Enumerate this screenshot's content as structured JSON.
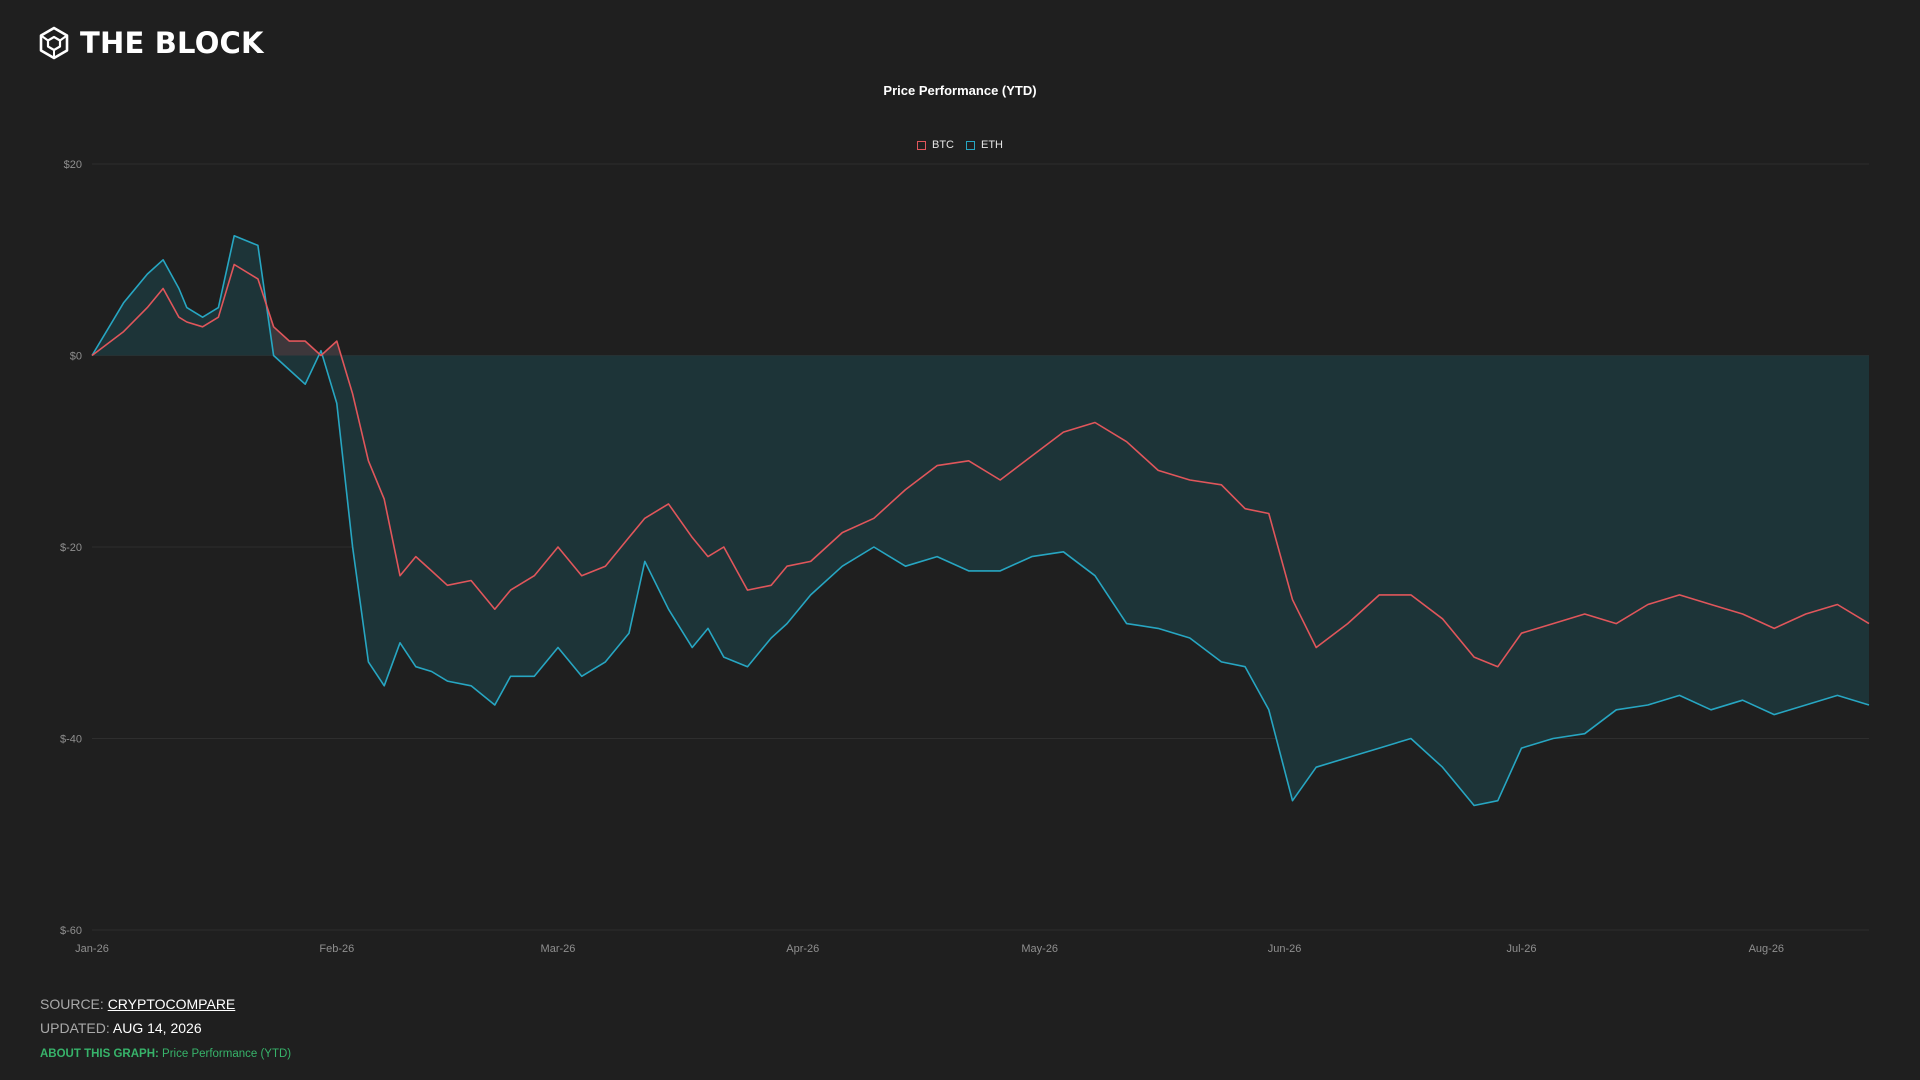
{
  "brand": {
    "name": "THE BLOCK",
    "icon": "cube-logo-icon"
  },
  "footer": {
    "source_label": "SOURCE:",
    "source_value": "CRYPTOCOMPARE",
    "updated_label": "UPDATED:",
    "updated_value": "AUG 14, 2026",
    "about_label": "ABOUT THIS GRAPH:",
    "about_value": "Price Performance (YTD)"
  },
  "colors": {
    "background": "#1f1f1f",
    "btc": "#e0565b",
    "eth": "#27a6c2",
    "btc_fill": "#3d373b",
    "eth_fill": "#1d3438",
    "grid": "#2e2e2e",
    "about": "#37b36a"
  },
  "chart_data": {
    "type": "area",
    "title": "Price Performance (YTD)",
    "legend_position": "top-center",
    "grid": true,
    "ylim": [
      -60,
      20
    ],
    "y_ticks": [
      "$20",
      "$0",
      "$-20",
      "$-40",
      "$-60"
    ],
    "x_ticks": [
      "Jan-26",
      "Feb-26",
      "Mar-26",
      "Apr-26",
      "May-26",
      "Jun-26",
      "Jul-26",
      "Aug-26"
    ],
    "x": [
      "2026-01-01",
      "2026-01-05",
      "2026-01-08",
      "2026-01-10",
      "2026-01-12",
      "2026-01-13",
      "2026-01-15",
      "2026-01-17",
      "2026-01-19",
      "2026-01-22",
      "2026-01-24",
      "2026-01-26",
      "2026-01-28",
      "2026-01-30",
      "2026-02-01",
      "2026-02-03",
      "2026-02-05",
      "2026-02-07",
      "2026-02-09",
      "2026-02-11",
      "2026-02-13",
      "2026-02-15",
      "2026-02-18",
      "2026-02-21",
      "2026-02-23",
      "2026-02-26",
      "2026-03-01",
      "2026-03-04",
      "2026-03-07",
      "2026-03-10",
      "2026-03-12",
      "2026-03-15",
      "2026-03-18",
      "2026-03-20",
      "2026-03-22",
      "2026-03-25",
      "2026-03-28",
      "2026-03-30",
      "2026-04-02",
      "2026-04-06",
      "2026-04-10",
      "2026-04-14",
      "2026-04-18",
      "2026-04-22",
      "2026-04-26",
      "2026-04-30",
      "2026-05-04",
      "2026-05-08",
      "2026-05-12",
      "2026-05-16",
      "2026-05-20",
      "2026-05-24",
      "2026-05-27",
      "2026-05-30",
      "2026-06-02",
      "2026-06-05",
      "2026-06-09",
      "2026-06-13",
      "2026-06-17",
      "2026-06-21",
      "2026-06-25",
      "2026-06-28",
      "2026-07-01",
      "2026-07-05",
      "2026-07-09",
      "2026-07-13",
      "2026-07-17",
      "2026-07-21",
      "2026-07-25",
      "2026-07-29",
      "2026-08-02",
      "2026-08-06",
      "2026-08-10",
      "2026-08-14"
    ],
    "series": [
      {
        "name": "BTC",
        "values": [
          0,
          2.5,
          5,
          7,
          4,
          3.5,
          3,
          4,
          9.5,
          8,
          3,
          1.5,
          1.5,
          0,
          1.5,
          -4,
          -11,
          -15,
          -23,
          -21,
          -22.5,
          -24,
          -23.5,
          -26.5,
          -24.5,
          -23,
          -20,
          -23,
          -22,
          -19,
          -17,
          -15.5,
          -19,
          -21,
          -20,
          -24.5,
          -24,
          -22,
          -21.5,
          -18.5,
          -17,
          -14,
          -11.5,
          -11,
          -13,
          -10.5,
          -8,
          -7,
          -9,
          -12,
          -13,
          -13.5,
          -16,
          -16.5,
          -25.5,
          -30.5,
          -28,
          -25,
          -25,
          -27.5,
          -31.5,
          -32.5,
          -29,
          -28,
          -27,
          -28,
          -26,
          -25,
          -26,
          -27,
          -28.5,
          -27,
          -26,
          -28
        ]
      },
      {
        "name": "ETH",
        "values": [
          0,
          5.5,
          8.5,
          10,
          7,
          5,
          4,
          5,
          12.5,
          11.5,
          0,
          -1.5,
          -3,
          0.5,
          -5,
          -20,
          -32,
          -34.5,
          -30,
          -32.5,
          -33,
          -34,
          -34.5,
          -36.5,
          -33.5,
          -33.5,
          -30.5,
          -33.5,
          -32,
          -29,
          -21.5,
          -26.5,
          -30.5,
          -28.5,
          -31.5,
          -32.5,
          -29.5,
          -28,
          -25,
          -22,
          -20,
          -22,
          -21,
          -22.5,
          -22.5,
          -21,
          -20.5,
          -23,
          -28,
          -28.5,
          -29.5,
          -32,
          -32.5,
          -37,
          -46.5,
          -43,
          -42,
          -41,
          -40,
          -43,
          -47,
          -46.5,
          -41,
          -40,
          -39.5,
          -37,
          -36.5,
          -35.5,
          -37,
          -36,
          -37.5,
          -36.5,
          -35.5,
          -36.5
        ]
      }
    ]
  }
}
